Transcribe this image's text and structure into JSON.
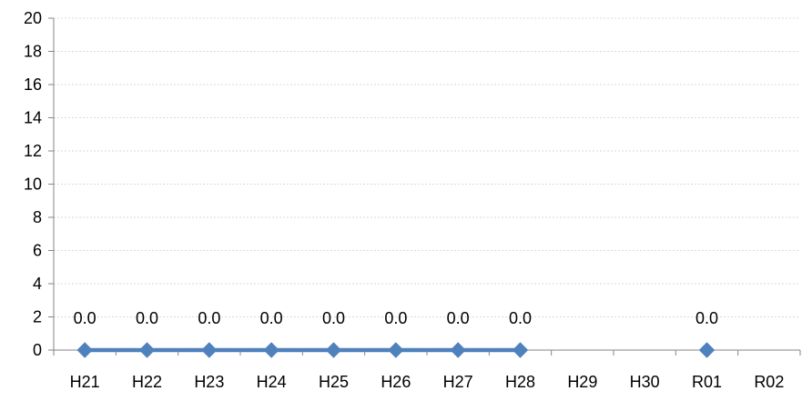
{
  "chart_data": {
    "type": "line",
    "title": "",
    "xlabel": "",
    "ylabel": "",
    "categories": [
      "H21",
      "H22",
      "H23",
      "H24",
      "H25",
      "H26",
      "H27",
      "H28",
      "H29",
      "H30",
      "R01",
      "R02"
    ],
    "series": [
      {
        "values": [
          0.0,
          0.0,
          0.0,
          0.0,
          0.0,
          0.0,
          0.0,
          0.0,
          null,
          null,
          0.0,
          null
        ],
        "data_labels": [
          "0.0",
          "0.0",
          "0.0",
          "0.0",
          "0.0",
          "0.0",
          "0.0",
          "0.0",
          "",
          "",
          "0.0",
          ""
        ],
        "color": "#4f81bd",
        "marker": "diamond"
      }
    ],
    "ylim": [
      0,
      20
    ],
    "yticks": [
      0,
      2,
      4,
      6,
      8,
      10,
      12,
      14,
      16,
      18,
      20
    ],
    "grid": true,
    "legend": "none"
  }
}
